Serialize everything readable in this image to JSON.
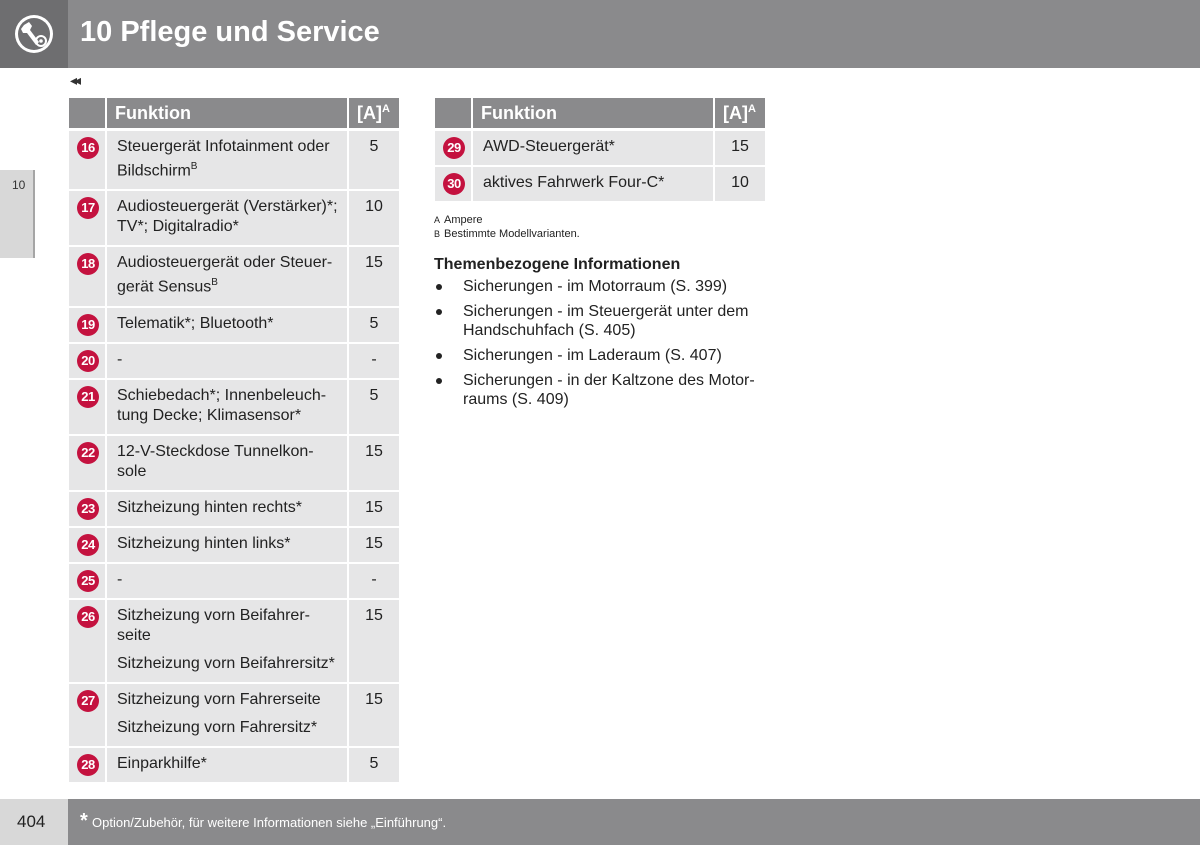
{
  "header": {
    "title": "10 Pflege und Service",
    "icon": "wrench-gear-icon"
  },
  "navigation": {
    "back_glyph": "◂◂"
  },
  "side_tab": {
    "chapter": "10"
  },
  "table_left": {
    "columns": [
      "Funktion",
      "[A]"
    ],
    "amp_superscript": "A",
    "rows": [
      {
        "num": "16",
        "lines": [
          "Steuergerät Infotainment oder Bildschirm"
        ],
        "sup": "B",
        "amp": "5"
      },
      {
        "num": "17",
        "lines": [
          "Audiosteuergerät (Verstärker)*; TV*; Digitalradio*"
        ],
        "sup": "",
        "amp": "10"
      },
      {
        "num": "18",
        "lines": [
          "Audiosteuergerät oder Steuer-gerät Sensus"
        ],
        "sup": "B",
        "amp": "15"
      },
      {
        "num": "19",
        "lines": [
          "Telematik*; Bluetooth*"
        ],
        "sup": "",
        "amp": "5"
      },
      {
        "num": "20",
        "lines": [
          "-"
        ],
        "sup": "",
        "amp": "-"
      },
      {
        "num": "21",
        "lines": [
          "Schiebedach*; Innenbeleuch-tung Decke; Klimasensor*"
        ],
        "sup": "",
        "amp": "5"
      },
      {
        "num": "22",
        "lines": [
          "12-V-Steckdose Tunnelkon-sole"
        ],
        "sup": "",
        "amp": "15"
      },
      {
        "num": "23",
        "lines": [
          "Sitzheizung hinten rechts*"
        ],
        "sup": "",
        "amp": "15"
      },
      {
        "num": "24",
        "lines": [
          "Sitzheizung hinten links*"
        ],
        "sup": "",
        "amp": "15"
      },
      {
        "num": "25",
        "lines": [
          "-"
        ],
        "sup": "",
        "amp": "-"
      },
      {
        "num": "26",
        "lines": [
          "Sitzheizung vorn Beifahrer-seite",
          "Sitzheizung vorn Beifahrersitz*"
        ],
        "sup": "",
        "amp": "15"
      },
      {
        "num": "27",
        "lines": [
          "Sitzheizung vorn Fahrerseite",
          "Sitzheizung vorn Fahrersitz*"
        ],
        "sup": "",
        "amp": "15"
      },
      {
        "num": "28",
        "lines": [
          "Einparkhilfe*"
        ],
        "sup": "",
        "amp": "5"
      }
    ]
  },
  "table_right": {
    "columns": [
      "Funktion",
      "[A]"
    ],
    "amp_superscript": "A",
    "rows": [
      {
        "num": "29",
        "lines": [
          "AWD-Steuergerät*"
        ],
        "sup": "",
        "amp": "15"
      },
      {
        "num": "30",
        "lines": [
          "aktives Fahrwerk Four-C*"
        ],
        "sup": "",
        "amp": "10"
      }
    ]
  },
  "footnotes": [
    {
      "letter": "A",
      "text": "Ampere"
    },
    {
      "letter": "B",
      "text": "Bestimmte Modellvarianten."
    }
  ],
  "related": {
    "title": "Themenbezogene Informationen",
    "items": [
      "Sicherungen - im Motorraum (S. 399)",
      "Sicherungen - im Steuergerät unter dem Handschuhfach (S. 405)",
      "Sicherungen - im Laderaum (S. 407)",
      "Sicherungen - in der Kaltzone des Motor-raums (S. 409)"
    ]
  },
  "footer": {
    "page_number": "404",
    "star": "*",
    "note": "Option/Zubehör, für weitere Informationen siehe „Einführung“."
  },
  "colors": {
    "header_gray": "#8a8a8c",
    "cell_gray": "#e6e6e7",
    "badge_red": "#c4123f"
  }
}
